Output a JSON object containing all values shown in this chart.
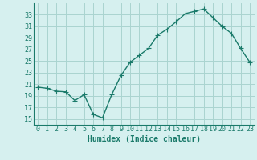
{
  "x": [
    0,
    1,
    2,
    3,
    4,
    5,
    6,
    7,
    8,
    9,
    10,
    11,
    12,
    13,
    14,
    15,
    16,
    17,
    18,
    19,
    20,
    21,
    22,
    23
  ],
  "y": [
    20.5,
    20.3,
    19.8,
    19.7,
    18.2,
    19.2,
    15.8,
    15.2,
    19.2,
    22.5,
    24.8,
    26.0,
    27.2,
    29.5,
    30.5,
    31.8,
    33.2,
    33.6,
    34.0,
    32.5,
    31.0,
    29.8,
    27.2,
    24.8
  ],
  "line_color": "#1a7a6a",
  "marker": "+",
  "marker_size": 4,
  "bg_color": "#d6f0ef",
  "grid_color": "#aad4d0",
  "xlabel": "Humidex (Indice chaleur)",
  "ylabel_ticks": [
    15,
    17,
    19,
    21,
    23,
    25,
    27,
    29,
    31,
    33
  ],
  "ylim": [
    14,
    35
  ],
  "xlim": [
    -0.5,
    23.5
  ],
  "xlabel_color": "#1a7a6a",
  "tick_color": "#1a7a6a",
  "label_fontsize": 7,
  "tick_fontsize": 6,
  "spine_color": "#1a7a6a"
}
